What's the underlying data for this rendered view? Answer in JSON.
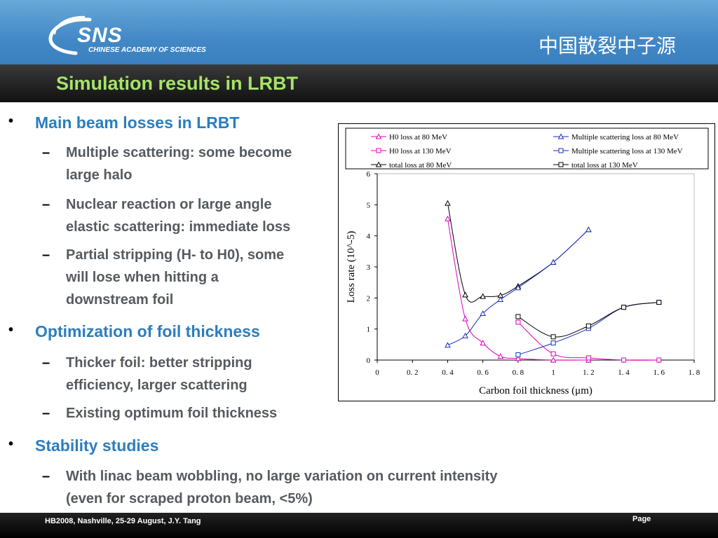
{
  "header": {
    "logo_sns": "SNS",
    "logo_subtitle": "CHINESE ACADEMY OF SCIENCES",
    "cn_title": "中国散裂中子源"
  },
  "slide": {
    "title": "Simulation results in LRBT"
  },
  "bullets": {
    "b1": "Main beam losses in LRBT",
    "b1_1a": "Multiple scattering: some become",
    "b1_1b": "large halo",
    "b1_2a": "Nuclear reaction or large angle",
    "b1_2b": "elastic scattering: immediate loss",
    "b1_3a": "Partial stripping (H- to H0), some",
    "b1_3b": "will lose when hitting a",
    "b1_3c": "downstream foil",
    "b2": "Optimization of foil thickness",
    "b2_1a": "Thicker foil: better stripping",
    "b2_1b": "efficiency, larger scattering",
    "b2_2": "Existing optimum foil thickness",
    "b3": "Stability studies",
    "b3_1a": "With linac beam wobbling, no large variation on current intensity",
    "b3_1b": "(even for scraped proton beam, <5%)"
  },
  "footer": {
    "left": "HB2008, Nashville, 25-29  August, J.Y. Tang",
    "page": "Page"
  },
  "colors": {
    "header_blue": "#4389c6",
    "title_green": "#a6e36b",
    "bullet_blue": "#2c7dbf",
    "subbullet_gray": "#555a60"
  },
  "chart_data": {
    "type": "line",
    "xlabel": "Carbon foil thickness (μm)",
    "ylabel": "Loss rate (10^-5)",
    "xlim": [
      0,
      1.8
    ],
    "ylim": [
      0,
      6
    ],
    "x_ticks": [
      "0",
      "0. 2",
      "0. 4",
      "0. 6",
      "0. 8",
      "1",
      "1. 2",
      "1. 4",
      "1. 6",
      "1. 8"
    ],
    "y_ticks": [
      "0",
      "1",
      "2",
      "3",
      "4",
      "5",
      "6"
    ],
    "legend_position": "top",
    "series": [
      {
        "name": "H0 loss at 80 MeV",
        "color": "#e000c0",
        "marker": "triangle",
        "x": [
          0.4,
          0.5,
          0.6,
          0.7,
          0.8,
          1.0,
          1.2
        ],
        "y": [
          4.55,
          1.33,
          0.55,
          0.12,
          0.05,
          0.0,
          0.0
        ]
      },
      {
        "name": "H0 loss at 130 MeV",
        "color": "#e000c0",
        "marker": "square",
        "x": [
          0.8,
          1.0,
          1.2,
          1.4,
          1.6
        ],
        "y": [
          1.22,
          0.2,
          0.07,
          0.0,
          0.0
        ]
      },
      {
        "name": "total loss at 80 MeV",
        "color": "#000000",
        "marker": "triangle",
        "x": [
          0.4,
          0.5,
          0.6,
          0.7,
          0.8,
          1.0,
          1.2
        ],
        "y": [
          5.05,
          2.1,
          2.05,
          2.08,
          2.38,
          3.15,
          4.2
        ]
      },
      {
        "name": "Multiple scattering loss at 80 MeV",
        "color": "#1a2fbf",
        "marker": "triangle",
        "x": [
          0.4,
          0.5,
          0.6,
          0.7,
          0.8,
          1.0,
          1.2
        ],
        "y": [
          0.48,
          0.78,
          1.5,
          1.95,
          2.33,
          3.15,
          4.2
        ]
      },
      {
        "name": "Multiple scattering loss at 130 MeV",
        "color": "#1a2fbf",
        "marker": "square",
        "x": [
          0.8,
          1.0,
          1.2,
          1.4,
          1.6
        ],
        "y": [
          0.17,
          0.55,
          1.02,
          1.7,
          1.86
        ]
      },
      {
        "name": "total loss at 130 MeV",
        "color": "#000000",
        "marker": "square",
        "x": [
          0.8,
          1.0,
          1.2,
          1.4,
          1.6
        ],
        "y": [
          1.4,
          0.75,
          1.1,
          1.7,
          1.86
        ]
      }
    ]
  }
}
